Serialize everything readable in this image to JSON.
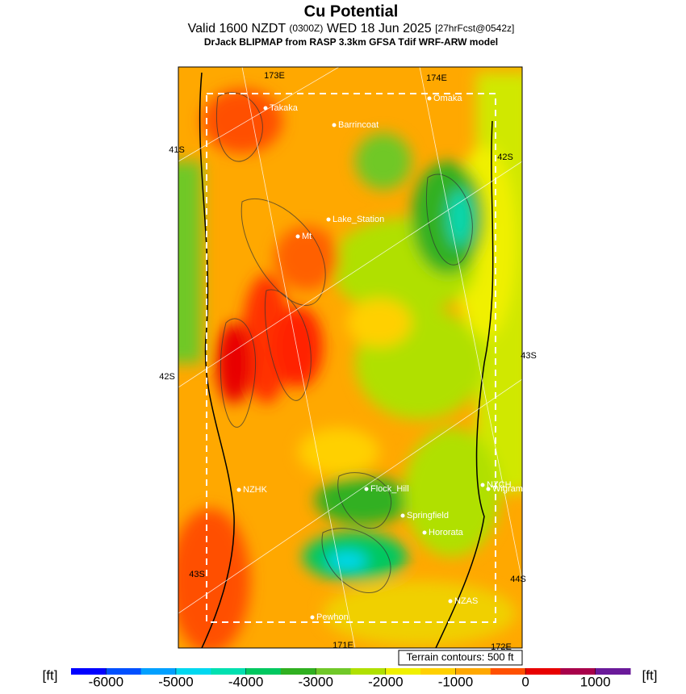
{
  "header": {
    "title": "Cu Potential",
    "valid": "Valid 1600 NZDT",
    "utc": "(0300Z)",
    "date": "WED 18 Jun 2025",
    "forecast": "[27hrFcst@0542z]",
    "model": "DrJack BLIPMAP from RASP 3.3km GFSA Tdif WRF-ARW model"
  },
  "map": {
    "grid_labels": [
      "173E",
      "174E",
      "41S",
      "42S",
      "42S",
      "43S",
      "43S",
      "44S",
      "171E",
      "172E"
    ],
    "places": [
      "Takaka",
      "Barrincoat",
      "Omaka",
      "Lake_Station",
      "Mt",
      "NZHK",
      "Flock_Hill",
      "NZCH",
      "Wigram",
      "Springfield",
      "Hororata",
      "NZAS",
      "Pewhon"
    ],
    "terrain_note": "Terrain contours: 500 ft"
  },
  "colorbar": {
    "unit": "[ft]",
    "lim": [
      -6500,
      1500
    ],
    "colors": [
      "#0000ff",
      "#0050ff",
      "#00a0ff",
      "#00d8f0",
      "#00e0b0",
      "#00c860",
      "#30b020",
      "#70c828",
      "#b0e000",
      "#f0f000",
      "#ffd000",
      "#ffa800",
      "#ff5000",
      "#e80000",
      "#a8004a",
      "#6a1a9a"
    ],
    "ticks": [
      -6000,
      -5000,
      -4000,
      -3000,
      -2000,
      -1000,
      0,
      1000
    ]
  }
}
